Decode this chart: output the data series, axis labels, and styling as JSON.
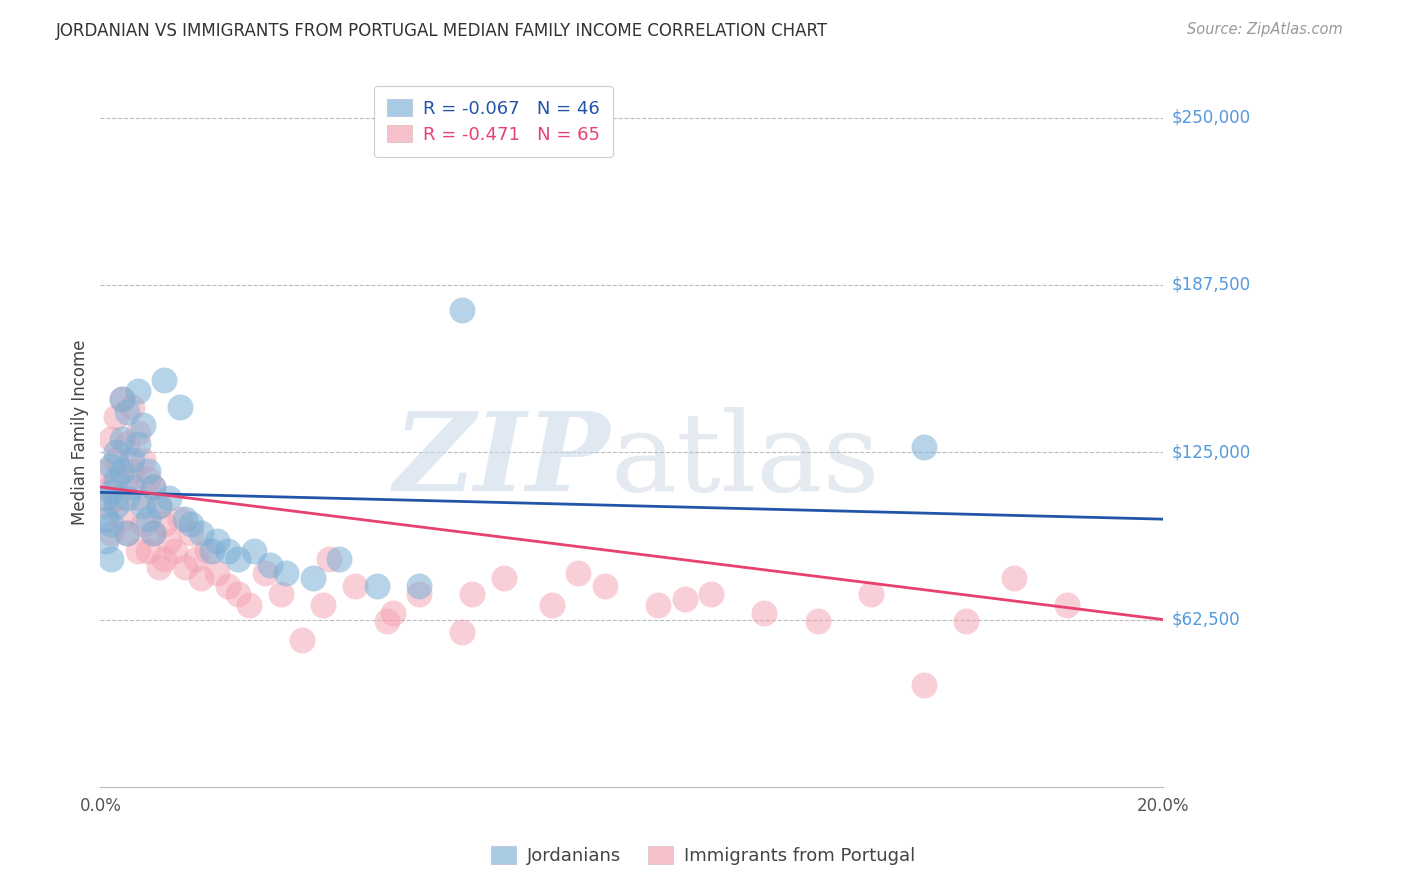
{
  "title": "JORDANIAN VS IMMIGRANTS FROM PORTUGAL MEDIAN FAMILY INCOME CORRELATION CHART",
  "source": "Source: ZipAtlas.com",
  "ylabel": "Median Family Income",
  "ytick_labels": [
    "$250,000",
    "$187,500",
    "$125,000",
    "$62,500"
  ],
  "ytick_values": [
    250000,
    187500,
    125000,
    62500
  ],
  "ylim": [
    0,
    265000
  ],
  "xlim": [
    0.0,
    0.2
  ],
  "legend_blue": "R = -0.067   N = 46",
  "legend_pink": "R = -0.471   N = 65",
  "legend_label_blue": "Jordanians",
  "legend_label_pink": "Immigrants from Portugal",
  "blue_color": "#7BAFD4",
  "pink_color": "#F4A0B0",
  "blue_line_color": "#2255AA",
  "pink_line_color": "#E84070",
  "blue_trend_x0": 0.0,
  "blue_trend_x1": 0.2,
  "blue_trend_y0": 110000,
  "blue_trend_y1": 100000,
  "pink_trend_x0": 0.0,
  "pink_trend_x1": 0.2,
  "pink_trend_y0": 112000,
  "pink_trend_y1": 62500,
  "jordanians_x": [
    0.001,
    0.001,
    0.001,
    0.002,
    0.002,
    0.002,
    0.002,
    0.003,
    0.003,
    0.003,
    0.004,
    0.004,
    0.004,
    0.005,
    0.005,
    0.005,
    0.006,
    0.006,
    0.007,
    0.007,
    0.008,
    0.008,
    0.009,
    0.009,
    0.01,
    0.01,
    0.011,
    0.012,
    0.013,
    0.015,
    0.016,
    0.017,
    0.019,
    0.021,
    0.022,
    0.024,
    0.026,
    0.029,
    0.032,
    0.035,
    0.04,
    0.045,
    0.052,
    0.06,
    0.155,
    0.068
  ],
  "jordanians_y": [
    108000,
    100000,
    92000,
    120000,
    110000,
    98000,
    85000,
    125000,
    115000,
    105000,
    130000,
    145000,
    118000,
    140000,
    108000,
    95000,
    122000,
    112000,
    148000,
    128000,
    135000,
    105000,
    118000,
    100000,
    112000,
    95000,
    105000,
    152000,
    108000,
    142000,
    100000,
    98000,
    95000,
    88000,
    92000,
    88000,
    85000,
    88000,
    83000,
    80000,
    78000,
    85000,
    75000,
    75000,
    127000,
    178000
  ],
  "portugal_x": [
    0.001,
    0.001,
    0.002,
    0.002,
    0.002,
    0.003,
    0.003,
    0.003,
    0.004,
    0.004,
    0.005,
    0.005,
    0.005,
    0.006,
    0.006,
    0.007,
    0.007,
    0.007,
    0.008,
    0.008,
    0.009,
    0.009,
    0.01,
    0.01,
    0.011,
    0.011,
    0.012,
    0.012,
    0.013,
    0.014,
    0.015,
    0.016,
    0.017,
    0.018,
    0.019,
    0.02,
    0.022,
    0.024,
    0.026,
    0.028,
    0.031,
    0.034,
    0.038,
    0.042,
    0.048,
    0.054,
    0.06,
    0.068,
    0.076,
    0.085,
    0.095,
    0.105,
    0.115,
    0.125,
    0.135,
    0.145,
    0.155,
    0.163,
    0.172,
    0.182,
    0.043,
    0.055,
    0.07,
    0.09,
    0.11
  ],
  "portugal_y": [
    118000,
    105000,
    130000,
    112000,
    95000,
    138000,
    122000,
    108000,
    145000,
    100000,
    128000,
    115000,
    95000,
    142000,
    118000,
    132000,
    108000,
    88000,
    122000,
    98000,
    115000,
    88000,
    112000,
    95000,
    105000,
    82000,
    98000,
    85000,
    92000,
    88000,
    100000,
    82000,
    95000,
    85000,
    78000,
    88000,
    80000,
    75000,
    72000,
    68000,
    80000,
    72000,
    55000,
    68000,
    75000,
    62000,
    72000,
    58000,
    78000,
    68000,
    75000,
    68000,
    72000,
    65000,
    62000,
    72000,
    38000,
    62000,
    78000,
    68000,
    85000,
    65000,
    72000,
    80000,
    70000
  ]
}
